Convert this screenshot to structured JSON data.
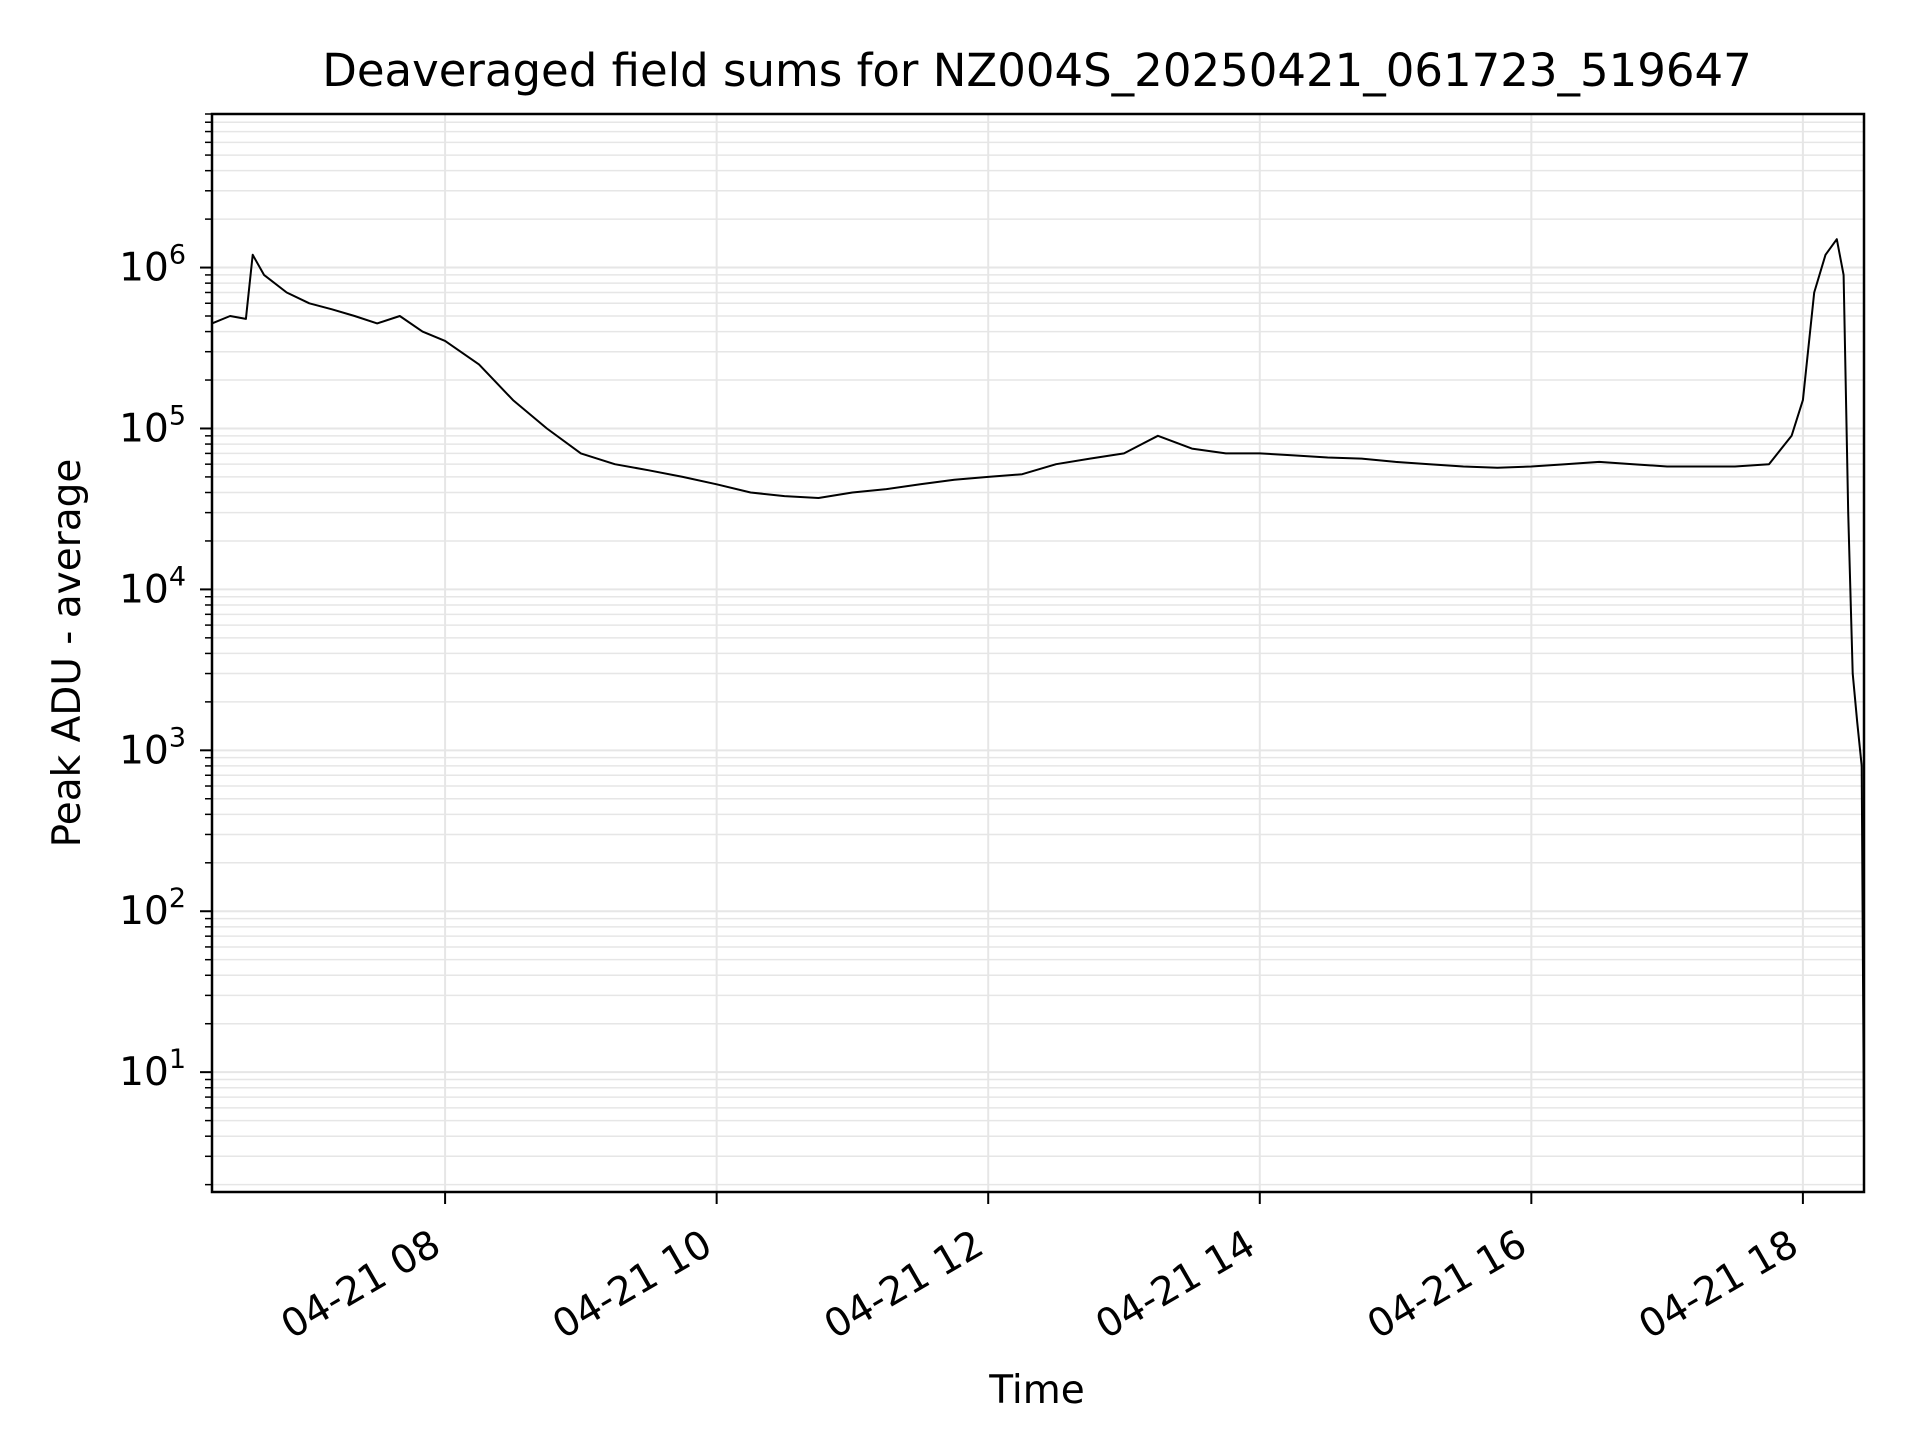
{
  "chart_data": {
    "type": "line",
    "title": "Deaveraged field sums for NZ004S_20250421_061723_519647",
    "xlabel": "Time",
    "ylabel": "Peak ADU - average",
    "x_scale": "time",
    "y_scale": "log",
    "xlim": [
      "2025-04-21 06:17",
      "2025-04-21 18:27"
    ],
    "ylim": [
      1.8,
      9000000
    ],
    "x_ticks": [
      "2025-04-21 08:00",
      "2025-04-21 10:00",
      "2025-04-21 12:00",
      "2025-04-21 14:00",
      "2025-04-21 16:00",
      "2025-04-21 18:00"
    ],
    "x_tick_labels": [
      "04-21 08",
      "04-21 10",
      "04-21 12",
      "04-21 14",
      "04-21 16",
      "04-21 18"
    ],
    "y_ticks": [
      10,
      100,
      1000,
      10000,
      100000,
      1000000
    ],
    "y_tick_labels": [
      {
        "base": "10",
        "exp": "1"
      },
      {
        "base": "10",
        "exp": "2"
      },
      {
        "base": "10",
        "exp": "3"
      },
      {
        "base": "10",
        "exp": "4"
      },
      {
        "base": "10",
        "exp": "5"
      },
      {
        "base": "10",
        "exp": "6"
      }
    ],
    "grid": true,
    "grid_color": "#e6e6e6",
    "line_color": "#000000",
    "series": [
      {
        "x": [
          "2025-04-21 06:17",
          "2025-04-21 06:25",
          "2025-04-21 06:32",
          "2025-04-21 06:35",
          "2025-04-21 06:40",
          "2025-04-21 06:50",
          "2025-04-21 07:00",
          "2025-04-21 07:10",
          "2025-04-21 07:20",
          "2025-04-21 07:30",
          "2025-04-21 07:40",
          "2025-04-21 07:50",
          "2025-04-21 08:00",
          "2025-04-21 08:15",
          "2025-04-21 08:30",
          "2025-04-21 08:45",
          "2025-04-21 09:00",
          "2025-04-21 09:15",
          "2025-04-21 09:30",
          "2025-04-21 09:45",
          "2025-04-21 10:00",
          "2025-04-21 10:15",
          "2025-04-21 10:30",
          "2025-04-21 10:45",
          "2025-04-21 11:00",
          "2025-04-21 11:15",
          "2025-04-21 11:30",
          "2025-04-21 11:45",
          "2025-04-21 12:00",
          "2025-04-21 12:15",
          "2025-04-21 12:30",
          "2025-04-21 12:45",
          "2025-04-21 13:00",
          "2025-04-21 13:15",
          "2025-04-21 13:30",
          "2025-04-21 13:45",
          "2025-04-21 14:00",
          "2025-04-21 14:15",
          "2025-04-21 14:30",
          "2025-04-21 14:45",
          "2025-04-21 15:00",
          "2025-04-21 15:15",
          "2025-04-21 15:30",
          "2025-04-21 15:45",
          "2025-04-21 16:00",
          "2025-04-21 16:15",
          "2025-04-21 16:30",
          "2025-04-21 16:45",
          "2025-04-21 17:00",
          "2025-04-21 17:15",
          "2025-04-21 17:30",
          "2025-04-21 17:45",
          "2025-04-21 17:55",
          "2025-04-21 18:00",
          "2025-04-21 18:05",
          "2025-04-21 18:10",
          "2025-04-21 18:15",
          "2025-04-21 18:18",
          "2025-04-21 18:20",
          "2025-04-21 18:22",
          "2025-04-21 18:24",
          "2025-04-21 18:26",
          "2025-04-21 18:27"
        ],
        "y": [
          450000,
          500000,
          480000,
          1200000,
          900000,
          700000,
          600000,
          550000,
          500000,
          450000,
          500000,
          400000,
          350000,
          250000,
          150000,
          100000,
          70000,
          60000,
          55000,
          50000,
          45000,
          40000,
          38000,
          37000,
          40000,
          42000,
          45000,
          48000,
          50000,
          52000,
          60000,
          65000,
          70000,
          90000,
          75000,
          70000,
          70000,
          68000,
          66000,
          65000,
          62000,
          60000,
          58000,
          57000,
          58000,
          60000,
          62000,
          60000,
          58000,
          58000,
          58000,
          60000,
          90000,
          150000,
          700000,
          1200000,
          1500000,
          900000,
          30000,
          3000,
          1500,
          800,
          4
        ]
      }
    ]
  }
}
